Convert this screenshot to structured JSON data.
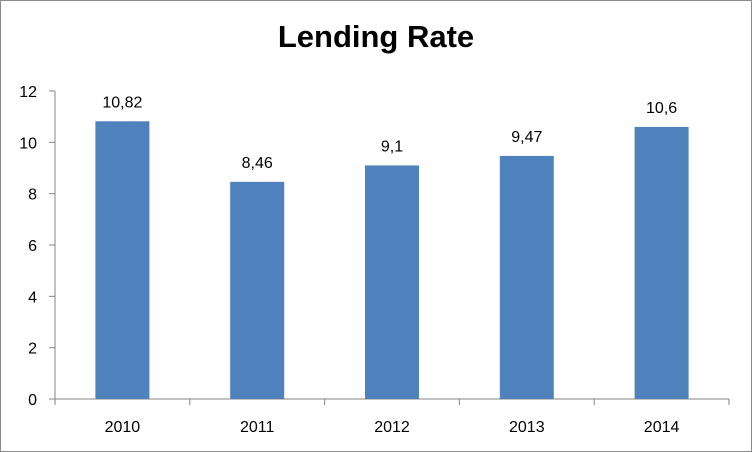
{
  "chart_data": {
    "type": "bar",
    "title": "Lending Rate",
    "xlabel": "",
    "ylabel": "",
    "categories": [
      "2010",
      "2011",
      "2012",
      "2013",
      "2014"
    ],
    "values": [
      10.82,
      8.46,
      9.1,
      9.47,
      10.6
    ],
    "data_labels": [
      "10,82",
      "8,46",
      "9,1",
      "9,47",
      "10,6"
    ],
    "ylim": [
      0,
      12
    ],
    "yticks": [
      0,
      2,
      4,
      6,
      8,
      10,
      12
    ],
    "grid": false,
    "legend": "none",
    "bar_color": "#4f81bd"
  }
}
